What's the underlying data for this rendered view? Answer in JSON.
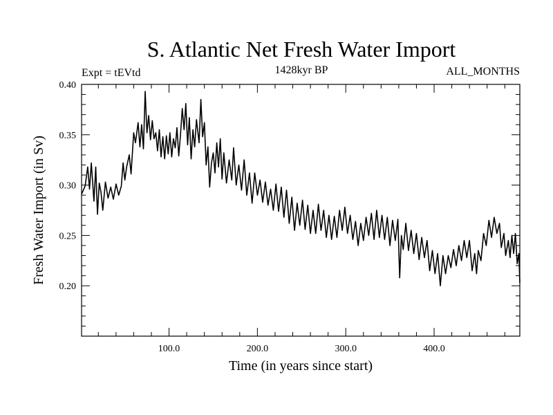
{
  "chart_data": {
    "type": "line",
    "title": "S. Atlantic Net Fresh Water Import",
    "subtitle": "1428kyr BP",
    "header_left": "Expt = tEVtd",
    "header_right": "ALL_MONTHS",
    "xlabel": "Time (in years since start)",
    "ylabel": "Fresh Water Import (in Sv)",
    "xlim": [
      1,
      497
    ],
    "ylim": [
      0.15,
      0.4
    ],
    "xticks": [
      {
        "value": 100,
        "label": "100.0"
      },
      {
        "value": 200,
        "label": "200.0"
      },
      {
        "value": 300,
        "label": "300.0"
      },
      {
        "value": 400,
        "label": "400.0"
      }
    ],
    "yticks": [
      {
        "value": 0.2,
        "label": "0.20"
      },
      {
        "value": 0.25,
        "label": "0.25"
      },
      {
        "value": 0.3,
        "label": "0.30"
      },
      {
        "value": 0.35,
        "label": "0.35"
      },
      {
        "value": 0.4,
        "label": "0.40"
      }
    ],
    "series": [
      {
        "name": "S. Atlantic net fresh water import",
        "color": "#000000",
        "points": [
          [
            1,
            0.291
          ],
          [
            5,
            0.299
          ],
          [
            8,
            0.318
          ],
          [
            10,
            0.296
          ],
          [
            12,
            0.322
          ],
          [
            15,
            0.284
          ],
          [
            17,
            0.318
          ],
          [
            19,
            0.271
          ],
          [
            21,
            0.302
          ],
          [
            23,
            0.293
          ],
          [
            25,
            0.275
          ],
          [
            28,
            0.303
          ],
          [
            31,
            0.287
          ],
          [
            34,
            0.298
          ],
          [
            37,
            0.286
          ],
          [
            40,
            0.301
          ],
          [
            43,
            0.29
          ],
          [
            46,
            0.299
          ],
          [
            48,
            0.322
          ],
          [
            50,
            0.305
          ],
          [
            52,
            0.318
          ],
          [
            55,
            0.33
          ],
          [
            57,
            0.311
          ],
          [
            60,
            0.352
          ],
          [
            62,
            0.342
          ],
          [
            65,
            0.362
          ],
          [
            67,
            0.338
          ],
          [
            69,
            0.36
          ],
          [
            71,
            0.336
          ],
          [
            73,
            0.393
          ],
          [
            75,
            0.352
          ],
          [
            77,
            0.369
          ],
          [
            79,
            0.345
          ],
          [
            81,
            0.364
          ],
          [
            83,
            0.346
          ],
          [
            85,
            0.352
          ],
          [
            87,
            0.334
          ],
          [
            89,
            0.355
          ],
          [
            91,
            0.328
          ],
          [
            93,
            0.348
          ],
          [
            95,
            0.326
          ],
          [
            97,
            0.349
          ],
          [
            99,
            0.331
          ],
          [
            101,
            0.352
          ],
          [
            103,
            0.328
          ],
          [
            105,
            0.346
          ],
          [
            107,
            0.337
          ],
          [
            109,
            0.357
          ],
          [
            111,
            0.329
          ],
          [
            113,
            0.351
          ],
          [
            115,
            0.376
          ],
          [
            117,
            0.355
          ],
          [
            119,
            0.381
          ],
          [
            121,
            0.34
          ],
          [
            123,
            0.367
          ],
          [
            125,
            0.326
          ],
          [
            127,
            0.355
          ],
          [
            129,
            0.338
          ],
          [
            131,
            0.365
          ],
          [
            134,
            0.342
          ],
          [
            136,
            0.385
          ],
          [
            138,
            0.348
          ],
          [
            140,
            0.362
          ],
          [
            142,
            0.32
          ],
          [
            144,
            0.338
          ],
          [
            146,
            0.298
          ],
          [
            148,
            0.322
          ],
          [
            150,
            0.332
          ],
          [
            152,
            0.312
          ],
          [
            154,
            0.342
          ],
          [
            156,
            0.318
          ],
          [
            158,
            0.346
          ],
          [
            160,
            0.306
          ],
          [
            162,
            0.332
          ],
          [
            165,
            0.302
          ],
          [
            168,
            0.325
          ],
          [
            171,
            0.305
          ],
          [
            173,
            0.337
          ],
          [
            176,
            0.3
          ],
          [
            179,
            0.32
          ],
          [
            182,
            0.295
          ],
          [
            185,
            0.325
          ],
          [
            188,
            0.29
          ],
          [
            191,
            0.312
          ],
          [
            194,
            0.282
          ],
          [
            197,
            0.312
          ],
          [
            200,
            0.29
          ],
          [
            203,
            0.305
          ],
          [
            206,
            0.283
          ],
          [
            209,
            0.303
          ],
          [
            212,
            0.28
          ],
          [
            215,
            0.296
          ],
          [
            218,
            0.275
          ],
          [
            221,
            0.301
          ],
          [
            224,
            0.274
          ],
          [
            227,
            0.298
          ],
          [
            230,
            0.268
          ],
          [
            233,
            0.295
          ],
          [
            236,
            0.262
          ],
          [
            239,
            0.288
          ],
          [
            242,
            0.255
          ],
          [
            245,
            0.282
          ],
          [
            248,
            0.26
          ],
          [
            251,
            0.285
          ],
          [
            254,
            0.256
          ],
          [
            257,
            0.28
          ],
          [
            260,
            0.252
          ],
          [
            263,
            0.275
          ],
          [
            266,
            0.252
          ],
          [
            269,
            0.281
          ],
          [
            272,
            0.255
          ],
          [
            275,
            0.275
          ],
          [
            278,
            0.248
          ],
          [
            281,
            0.27
          ],
          [
            284,
            0.246
          ],
          [
            287,
            0.269
          ],
          [
            290,
            0.248
          ],
          [
            293,
            0.275
          ],
          [
            296,
            0.255
          ],
          [
            299,
            0.278
          ],
          [
            302,
            0.252
          ],
          [
            305,
            0.27
          ],
          [
            308,
            0.246
          ],
          [
            311,
            0.264
          ],
          [
            314,
            0.24
          ],
          [
            317,
            0.262
          ],
          [
            320,
            0.245
          ],
          [
            323,
            0.268
          ],
          [
            326,
            0.25
          ],
          [
            329,
            0.272
          ],
          [
            332,
            0.246
          ],
          [
            335,
            0.275
          ],
          [
            338,
            0.248
          ],
          [
            341,
            0.27
          ],
          [
            344,
            0.246
          ],
          [
            347,
            0.268
          ],
          [
            350,
            0.24
          ],
          [
            353,
            0.265
          ],
          [
            356,
            0.245
          ],
          [
            359,
            0.266
          ],
          [
            361,
            0.208
          ],
          [
            363,
            0.25
          ],
          [
            365,
            0.236
          ],
          [
            368,
            0.262
          ],
          [
            371,
            0.235
          ],
          [
            374,
            0.255
          ],
          [
            377,
            0.232
          ],
          [
            380,
            0.252
          ],
          [
            383,
            0.226
          ],
          [
            386,
            0.248
          ],
          [
            389,
            0.228
          ],
          [
            392,
            0.245
          ],
          [
            395,
            0.215
          ],
          [
            398,
            0.235
          ],
          [
            401,
            0.212
          ],
          [
            404,
            0.232
          ],
          [
            407,
            0.2
          ],
          [
            410,
            0.23
          ],
          [
            413,
            0.212
          ],
          [
            416,
            0.23
          ],
          [
            419,
            0.218
          ],
          [
            422,
            0.236
          ],
          [
            425,
            0.22
          ],
          [
            428,
            0.24
          ],
          [
            431,
            0.225
          ],
          [
            434,
            0.245
          ],
          [
            437,
            0.228
          ],
          [
            440,
            0.245
          ],
          [
            443,
            0.215
          ],
          [
            446,
            0.232
          ],
          [
            448,
            0.212
          ],
          [
            450,
            0.235
          ],
          [
            453,
            0.225
          ],
          [
            456,
            0.252
          ],
          [
            459,
            0.24
          ],
          [
            462,
            0.265
          ],
          [
            465,
            0.248
          ],
          [
            468,
            0.268
          ],
          [
            471,
            0.252
          ],
          [
            474,
            0.262
          ],
          [
            476,
            0.238
          ],
          [
            479,
            0.252
          ],
          [
            481,
            0.23
          ],
          [
            484,
            0.245
          ],
          [
            486,
            0.228
          ],
          [
            488,
            0.25
          ],
          [
            490,
            0.232
          ],
          [
            492,
            0.252
          ],
          [
            494,
            0.222
          ],
          [
            496,
            0.232
          ],
          [
            497,
            0.203
          ]
        ]
      }
    ]
  }
}
